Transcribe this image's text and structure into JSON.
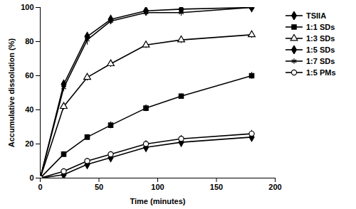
{
  "chart_data": {
    "type": "line",
    "x_label": "Time (minutes)",
    "y_label": "Accumulative dissolution (%)",
    "x": [
      0,
      20,
      40,
      60,
      90,
      120,
      180
    ],
    "xlim": [
      0,
      200
    ],
    "xticks": [
      0,
      50,
      100,
      150,
      200
    ],
    "ylim": [
      0,
      100
    ],
    "yticks": [
      0,
      20,
      40,
      60,
      80,
      100
    ],
    "grid": false,
    "legend": "right",
    "series": [
      {
        "name": "TSIIA",
        "color": "#000000",
        "marker": "diamond",
        "line_style": "solid",
        "values": [
          0,
          2,
          8,
          12,
          18,
          21,
          24
        ],
        "errors": [
          0,
          1.5,
          1.5,
          1.5,
          2,
          2,
          2
        ]
      },
      {
        "name": "1:1 SDs",
        "color": "#000000",
        "marker": "square",
        "line_style": "solid",
        "values": [
          0,
          14,
          24,
          31,
          41,
          48,
          60
        ],
        "errors": [
          0,
          1.5,
          1.5,
          2,
          2,
          1.5,
          2
        ]
      },
      {
        "name": "1:3 SDs",
        "color": "#000000",
        "marker": "triangle-open",
        "line_style": "solid",
        "values": [
          0,
          42,
          59,
          67,
          78,
          81,
          84
        ],
        "errors": [
          0,
          2,
          2,
          2,
          2,
          2,
          2
        ]
      },
      {
        "name": "1:5 SDs",
        "color": "#000000",
        "marker": "diamond",
        "line_style": "solid",
        "values": [
          0,
          55,
          83,
          93,
          98,
          99,
          100
        ],
        "errors": [
          0,
          2,
          2,
          2,
          2,
          1,
          1
        ]
      },
      {
        "name": "1:7 SDs",
        "color": "#000000",
        "marker": "asterisk",
        "line_style": "solid",
        "values": [
          0,
          53,
          81,
          92,
          97,
          97,
          100
        ],
        "errors": [
          0,
          2,
          3,
          2,
          2,
          2,
          1
        ]
      },
      {
        "name": "1:5 PMs",
        "color": "#000000",
        "marker": "circle-open",
        "line_style": "solid",
        "values": [
          0,
          4,
          10,
          14,
          20,
          23,
          26
        ],
        "errors": [
          0,
          1.5,
          1.5,
          1.5,
          2,
          2,
          2
        ]
      }
    ]
  }
}
